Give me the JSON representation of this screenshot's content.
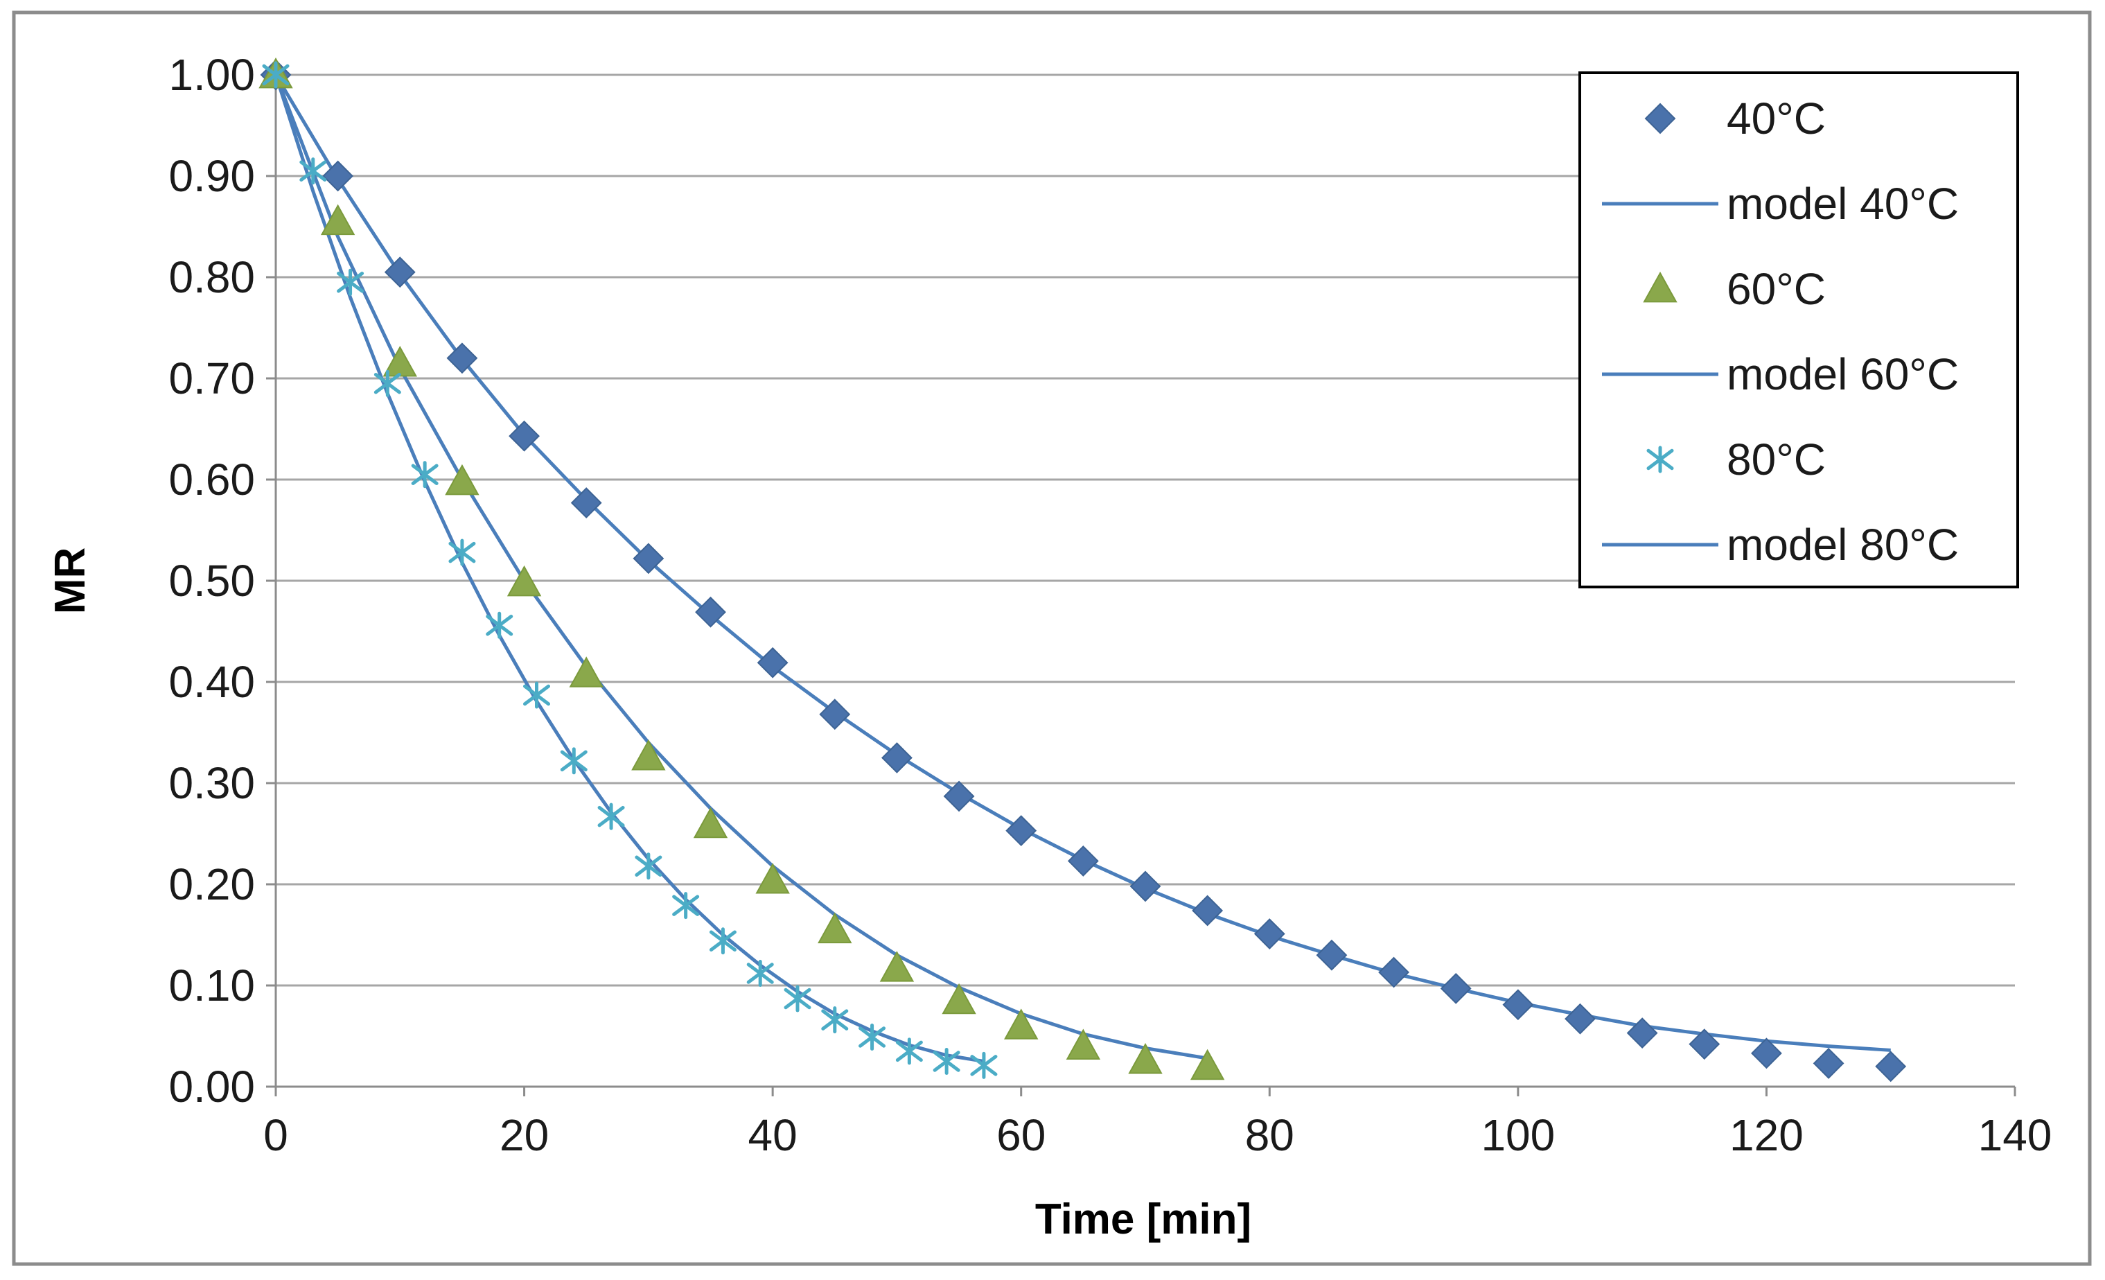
{
  "chart_data": {
    "type": "scatter",
    "title": "",
    "xlabel": "Time [min]",
    "ylabel": "MR",
    "xlim": [
      0,
      140
    ],
    "ylim": [
      0,
      1
    ],
    "xticks": [
      0,
      20,
      40,
      60,
      80,
      100,
      120,
      140
    ],
    "xtick_labels": [
      "0",
      "20",
      "40",
      "60",
      "80",
      "100",
      "120",
      "140"
    ],
    "yticks": [
      0,
      0.1,
      0.2,
      0.3,
      0.4,
      0.5,
      0.6,
      0.7,
      0.8,
      0.9,
      1.0
    ],
    "ytick_labels": [
      "0.00",
      "0.10",
      "0.20",
      "0.30",
      "0.40",
      "0.50",
      "0.60",
      "0.70",
      "0.80",
      "0.90",
      "1.00"
    ],
    "grid": "horizontal",
    "legend_position": "top-right",
    "series": [
      {
        "name": "40°C",
        "kind": "markers",
        "marker": "diamond",
        "color": "#4a72ab",
        "x": [
          0,
          5,
          10,
          15,
          20,
          25,
          30,
          35,
          40,
          45,
          50,
          55,
          60,
          65,
          70,
          75,
          80,
          85,
          90,
          95,
          100,
          105,
          110,
          115,
          120,
          125,
          130
        ],
        "y": [
          1.0,
          0.9,
          0.805,
          0.72,
          0.643,
          0.577,
          0.522,
          0.469,
          0.419,
          0.368,
          0.325,
          0.287,
          0.253,
          0.223,
          0.198,
          0.174,
          0.151,
          0.13,
          0.113,
          0.097,
          0.081,
          0.067,
          0.053,
          0.042,
          0.033,
          0.023,
          0.02
        ]
      },
      {
        "name": "model 40°C",
        "kind": "line",
        "color": "#4a7ebb",
        "x": [
          0,
          5,
          10,
          15,
          20,
          25,
          30,
          35,
          40,
          45,
          50,
          55,
          60,
          65,
          70,
          75,
          80,
          85,
          90,
          95,
          100,
          105,
          110,
          115,
          120,
          125,
          130
        ],
        "y": [
          1.0,
          0.897,
          0.803,
          0.719,
          0.644,
          0.58,
          0.52,
          0.466,
          0.415,
          0.37,
          0.328,
          0.29,
          0.255,
          0.224,
          0.196,
          0.171,
          0.149,
          0.13,
          0.112,
          0.097,
          0.083,
          0.071,
          0.06,
          0.052,
          0.045,
          0.04,
          0.036
        ]
      },
      {
        "name": "60°C",
        "kind": "markers",
        "marker": "triangle",
        "color": "#8aa84b",
        "x": [
          0,
          5,
          10,
          15,
          20,
          25,
          30,
          35,
          40,
          45,
          50,
          55,
          60,
          65,
          70,
          75
        ],
        "y": [
          1.0,
          0.855,
          0.715,
          0.598,
          0.498,
          0.408,
          0.326,
          0.259,
          0.204,
          0.155,
          0.117,
          0.085,
          0.06,
          0.04,
          0.026,
          0.02
        ]
      },
      {
        "name": "model 60°C",
        "kind": "line",
        "color": "#4a7ebb",
        "x": [
          0,
          5,
          10,
          15,
          20,
          25,
          30,
          35,
          40,
          45,
          50,
          55,
          60,
          65,
          70,
          75
        ],
        "y": [
          1.0,
          0.84,
          0.71,
          0.6,
          0.5,
          0.415,
          0.34,
          0.275,
          0.218,
          0.17,
          0.13,
          0.098,
          0.072,
          0.052,
          0.038,
          0.028
        ]
      },
      {
        "name": "80°C",
        "kind": "markers",
        "marker": "asterisk",
        "color": "#4bacc6",
        "x": [
          0,
          3,
          6,
          9,
          12,
          15,
          18,
          21,
          24,
          27,
          30,
          33,
          36,
          39,
          42,
          45,
          48,
          51,
          54,
          57
        ],
        "y": [
          1.0,
          0.905,
          0.795,
          0.695,
          0.605,
          0.528,
          0.456,
          0.387,
          0.322,
          0.267,
          0.218,
          0.179,
          0.144,
          0.112,
          0.087,
          0.066,
          0.049,
          0.035,
          0.025,
          0.021
        ]
      },
      {
        "name": "model 80°C",
        "kind": "line",
        "color": "#4a7ebb",
        "x": [
          0,
          3,
          6,
          9,
          12,
          15,
          18,
          21,
          24,
          27,
          30,
          33,
          36,
          39,
          42,
          45,
          48,
          51,
          54,
          57
        ],
        "y": [
          1.0,
          0.885,
          0.78,
          0.685,
          0.598,
          0.518,
          0.446,
          0.381,
          0.323,
          0.271,
          0.225,
          0.185,
          0.15,
          0.12,
          0.094,
          0.072,
          0.055,
          0.041,
          0.031,
          0.025
        ]
      }
    ]
  }
}
